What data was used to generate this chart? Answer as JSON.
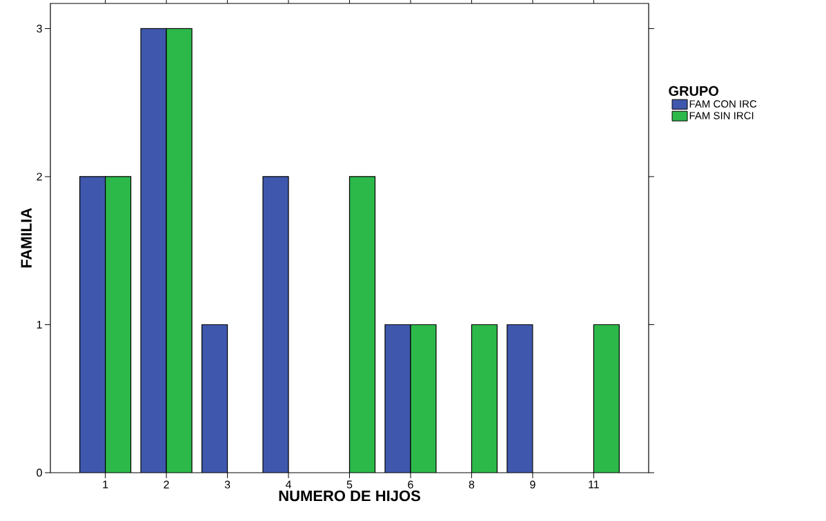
{
  "chart_data": {
    "type": "bar",
    "xlabel": "NUMERO DE HIJOS",
    "ylabel": "FAMILIA",
    "legend_title": "GRUPO",
    "categories": [
      "1",
      "2",
      "3",
      "4",
      "5",
      "6",
      "8",
      "9",
      "11"
    ],
    "series": [
      {
        "name": "FAM CON IRC",
        "color": "#3f58ad",
        "values": [
          2,
          3,
          1,
          2,
          null,
          1,
          null,
          1,
          null
        ]
      },
      {
        "name": "FAM SIN IRCI",
        "color": "#2db84a",
        "values": [
          2,
          3,
          null,
          null,
          2,
          1,
          1,
          null,
          1
        ]
      }
    ],
    "ylim": [
      0,
      3.17
    ],
    "yticks": [
      0,
      1,
      2,
      3
    ],
    "grid": false,
    "legend": "right"
  }
}
